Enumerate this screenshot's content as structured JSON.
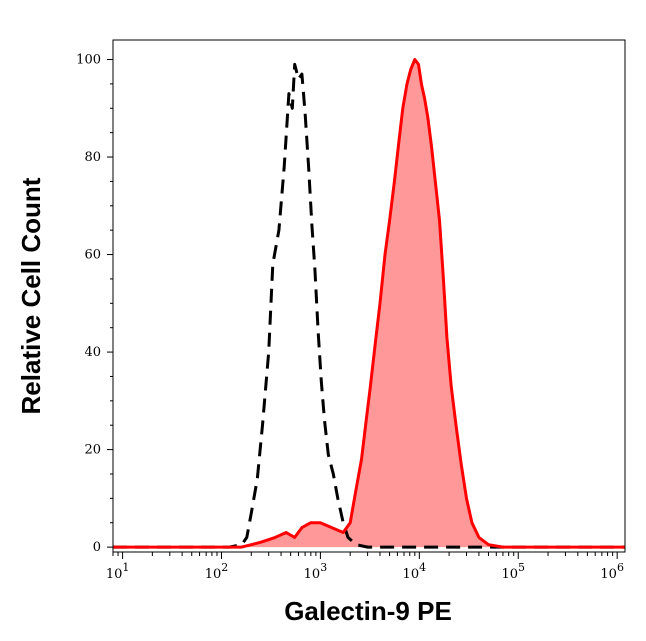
{
  "chart_data": {
    "type": "area",
    "xlabel": "Galectin-9 PE",
    "ylabel": "Relative Cell Count",
    "x_scale": "log",
    "xlim": [
      8,
      1200000
    ],
    "ylim": [
      -1,
      104
    ],
    "grid": false,
    "legend": "none",
    "x_ticks": [
      {
        "value": 10,
        "base": "10",
        "exp": "1"
      },
      {
        "value": 100,
        "base": "10",
        "exp": "2"
      },
      {
        "value": 1000,
        "base": "10",
        "exp": "3"
      },
      {
        "value": 10000,
        "base": "10",
        "exp": "4"
      },
      {
        "value": 100000,
        "base": "10",
        "exp": "5"
      },
      {
        "value": 1000000,
        "base": "10",
        "exp": "6"
      }
    ],
    "y_ticks": [
      0,
      20,
      40,
      60,
      80,
      100
    ],
    "series": [
      {
        "style": "dashed",
        "color": "#000000",
        "fill": "none",
        "points": [
          [
            8,
            0
          ],
          [
            70,
            0
          ],
          [
            120,
            0
          ],
          [
            160,
            0.5
          ],
          [
            180,
            2
          ],
          [
            200,
            7
          ],
          [
            230,
            14
          ],
          [
            260,
            25
          ],
          [
            300,
            40
          ],
          [
            330,
            58
          ],
          [
            380,
            65
          ],
          [
            430,
            78
          ],
          [
            480,
            93
          ],
          [
            520,
            90
          ],
          [
            550,
            99
          ],
          [
            600,
            96
          ],
          [
            650,
            97
          ],
          [
            700,
            89
          ],
          [
            760,
            78
          ],
          [
            820,
            66
          ],
          [
            880,
            57
          ],
          [
            950,
            44
          ],
          [
            1020,
            34
          ],
          [
            1100,
            26
          ],
          [
            1200,
            19
          ],
          [
            1350,
            15
          ],
          [
            1500,
            10
          ],
          [
            1700,
            5
          ],
          [
            1900,
            2
          ],
          [
            2300,
            0.5
          ],
          [
            3000,
            0
          ],
          [
            6000,
            0
          ],
          [
            1200000,
            0
          ]
        ]
      },
      {
        "style": "solid",
        "color": "#ff0000",
        "fill": "#ff9999",
        "points": [
          [
            8,
            0
          ],
          [
            100,
            0
          ],
          [
            160,
            0
          ],
          [
            200,
            0.5
          ],
          [
            250,
            1
          ],
          [
            350,
            2
          ],
          [
            450,
            3
          ],
          [
            550,
            2
          ],
          [
            650,
            4
          ],
          [
            800,
            5
          ],
          [
            1000,
            5
          ],
          [
            1300,
            4
          ],
          [
            1700,
            3
          ],
          [
            2000,
            5
          ],
          [
            2300,
            12
          ],
          [
            2600,
            18
          ],
          [
            2900,
            26
          ],
          [
            3200,
            33
          ],
          [
            3600,
            42
          ],
          [
            4000,
            50
          ],
          [
            4500,
            60
          ],
          [
            5000,
            67
          ],
          [
            5600,
            75
          ],
          [
            6200,
            83
          ],
          [
            6800,
            90
          ],
          [
            7500,
            95
          ],
          [
            8200,
            98
          ],
          [
            9000,
            100
          ],
          [
            9800,
            99
          ],
          [
            10500,
            95
          ],
          [
            11300,
            92
          ],
          [
            12200,
            88
          ],
          [
            13300,
            82
          ],
          [
            14500,
            75
          ],
          [
            16000,
            67
          ],
          [
            17500,
            55
          ],
          [
            19000,
            43
          ],
          [
            21000,
            33
          ],
          [
            23500,
            25
          ],
          [
            26500,
            17
          ],
          [
            30000,
            10
          ],
          [
            34000,
            5
          ],
          [
            40000,
            2
          ],
          [
            50000,
            0.5
          ],
          [
            70000,
            0
          ],
          [
            1200000,
            0
          ]
        ]
      }
    ]
  }
}
